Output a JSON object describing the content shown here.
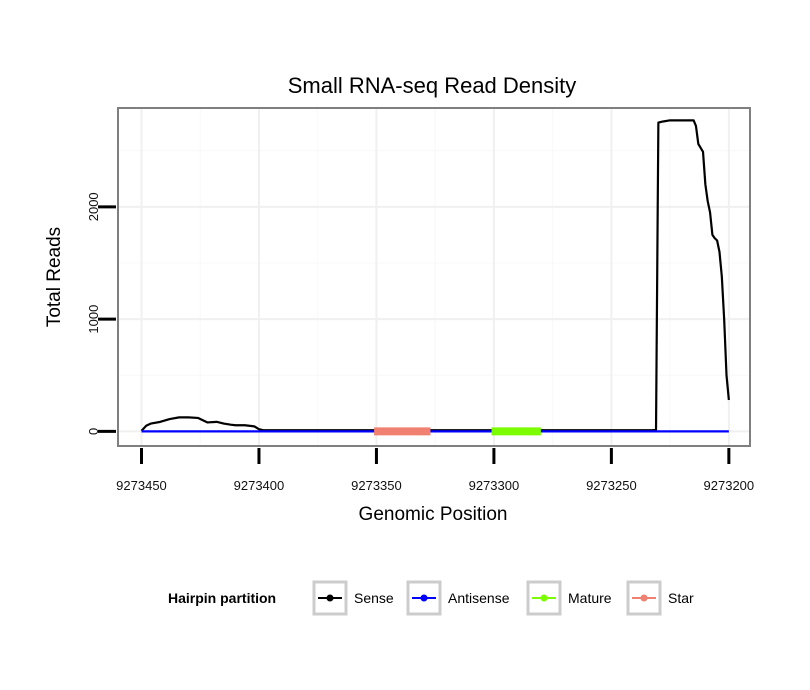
{
  "chart_data": {
    "type": "line",
    "title": "Small RNA-seq Read Density",
    "xlabel": "Genomic Position",
    "ylabel": "Total Reads",
    "x_reversed": true,
    "xlim": [
      9273460,
      9273191
    ],
    "ylim": [
      -130,
      2880
    ],
    "x_ticks": [
      9273450,
      9273400,
      9273350,
      9273300,
      9273250,
      9273200
    ],
    "x_tick_labels": [
      "9273450",
      "9273400",
      "9273350",
      "9273300",
      "9273250",
      "9273200"
    ],
    "y_ticks": [
      0,
      1000,
      2000
    ],
    "y_tick_labels": [
      "0",
      "1000",
      "2000"
    ],
    "grid": true,
    "legend": {
      "title": "Hairpin partition",
      "position": "bottom",
      "entries": [
        {
          "name": "Sense",
          "color": "#000000"
        },
        {
          "name": "Antisense",
          "color": "#0000ff"
        },
        {
          "name": "Mature",
          "color": "#7cfc00"
        },
        {
          "name": "Star",
          "color": "#f08070"
        }
      ]
    },
    "series": [
      {
        "name": "Sense",
        "color": "#000000",
        "x": [
          9273450,
          9273448,
          9273446,
          9273442,
          9273438,
          9273434,
          9273430,
          9273426,
          9273422,
          9273418,
          9273415,
          9273412,
          9273410,
          9273406,
          9273402,
          9273400,
          9273398,
          9273380,
          9273350,
          9273300,
          9273260,
          9273233,
          9273231,
          9273230,
          9273228,
          9273225,
          9273220,
          9273215,
          9273214,
          9273213,
          9273211,
          9273210,
          9273209,
          9273208,
          9273207,
          9273206,
          9273205,
          9273204,
          9273203,
          9273202,
          9273201,
          9273200
        ],
        "y": [
          5,
          50,
          70,
          85,
          110,
          125,
          125,
          120,
          80,
          85,
          70,
          60,
          55,
          55,
          45,
          20,
          10,
          10,
          10,
          10,
          10,
          10,
          15,
          2750,
          2760,
          2770,
          2770,
          2770,
          2720,
          2560,
          2490,
          2200,
          2050,
          1950,
          1750,
          1720,
          1700,
          1600,
          1380,
          1000,
          500,
          280
        ]
      },
      {
        "name": "Antisense",
        "color": "#0000ff",
        "x": [
          9273450,
          9273200
        ],
        "y": [
          0,
          0
        ]
      }
    ],
    "segments": [
      {
        "name": "Star",
        "color": "#f08070",
        "start": 9273351,
        "end": 9273327,
        "y": 0
      },
      {
        "name": "Mature",
        "color": "#7cfc00",
        "start": 9273301,
        "end": 9273280,
        "y": 0
      }
    ]
  }
}
